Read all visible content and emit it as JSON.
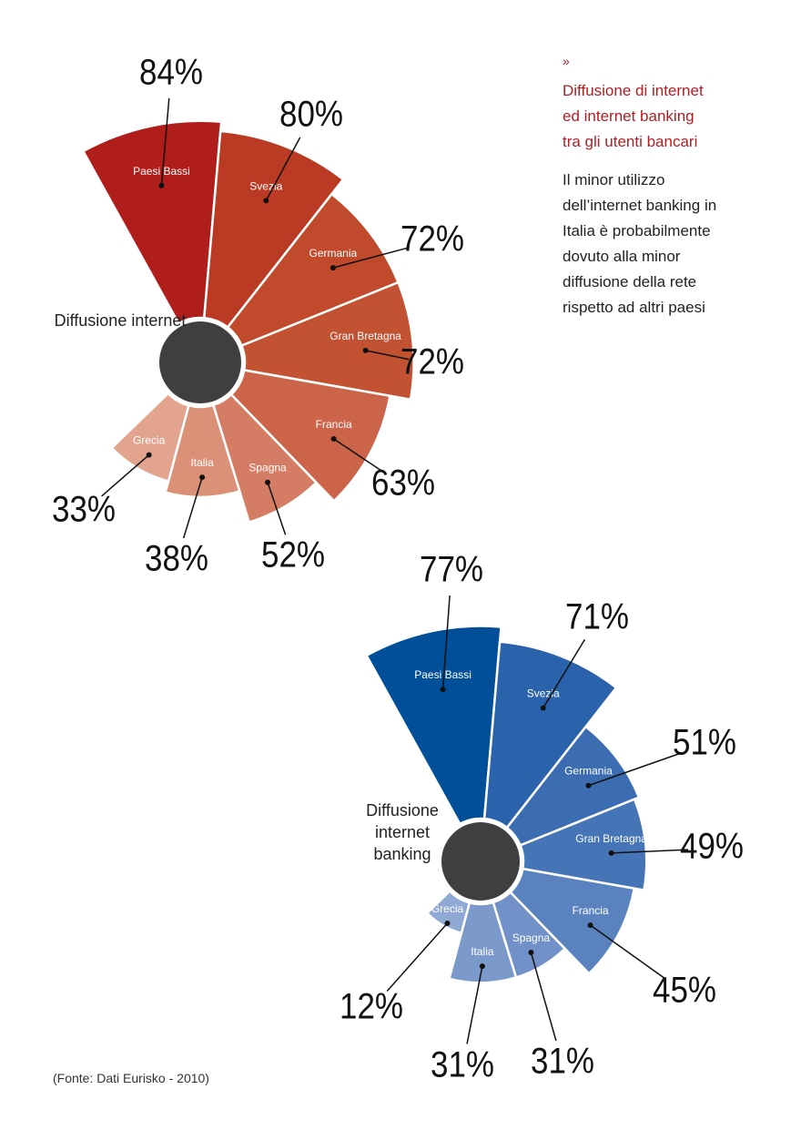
{
  "sidebar": {
    "chevron": "»",
    "title": "Diffusione di internet\ned internet banking\ntra gli utenti bancari",
    "text": "Il minor utilizzo\ndell’internet banking in\nItalia è probabilmente\ndovuto alla minor\ndiffusione della rete\nrispetto ad altri paesi"
  },
  "source": "(Fonte: Dati Eurisko - 2010)",
  "colors": {
    "hub": "#3f3f41",
    "leader": "#111111",
    "text": "#111111"
  },
  "chart_data": [
    {
      "type": "pie",
      "subtype": "polar-area",
      "title": "Diffusione internet",
      "categories": [
        "Paesi Bassi",
        "Svezia",
        "Germania",
        "Gran Bretagna",
        "Francia",
        "Spagna",
        "Italia",
        "Grecia"
      ],
      "values": [
        84,
        80,
        72,
        72,
        63,
        52,
        38,
        33
      ],
      "value_labels": [
        "84%",
        "80%",
        "72%",
        "72%",
        "63%",
        "52%",
        "38%",
        "33%"
      ],
      "unit": "%",
      "colors": [
        "#b01e1b",
        "#bb3a24",
        "#c04a2b",
        "#c25232",
        "#cb6448",
        "#d47d64",
        "#db9078",
        "#e3a48f"
      ]
    },
    {
      "type": "pie",
      "subtype": "polar-area",
      "title": "Diffusione\ninternet\nbanking",
      "categories": [
        "Paesi Bassi",
        "Svezia",
        "Germania",
        "Gran Bretagna",
        "Francia",
        "Spagna",
        "Italia",
        "Grecia"
      ],
      "values": [
        77,
        71,
        51,
        49,
        45,
        31,
        31,
        12
      ],
      "value_labels": [
        "77%",
        "71%",
        "51%",
        "49%",
        "45%",
        "31%",
        "31%",
        "12%"
      ],
      "unit": "%",
      "colors": [
        "#004f98",
        "#2a62ac",
        "#3c6db3",
        "#4574b7",
        "#5a82bf",
        "#7291c8",
        "#7c99cc",
        "#8fa8d4"
      ]
    }
  ]
}
